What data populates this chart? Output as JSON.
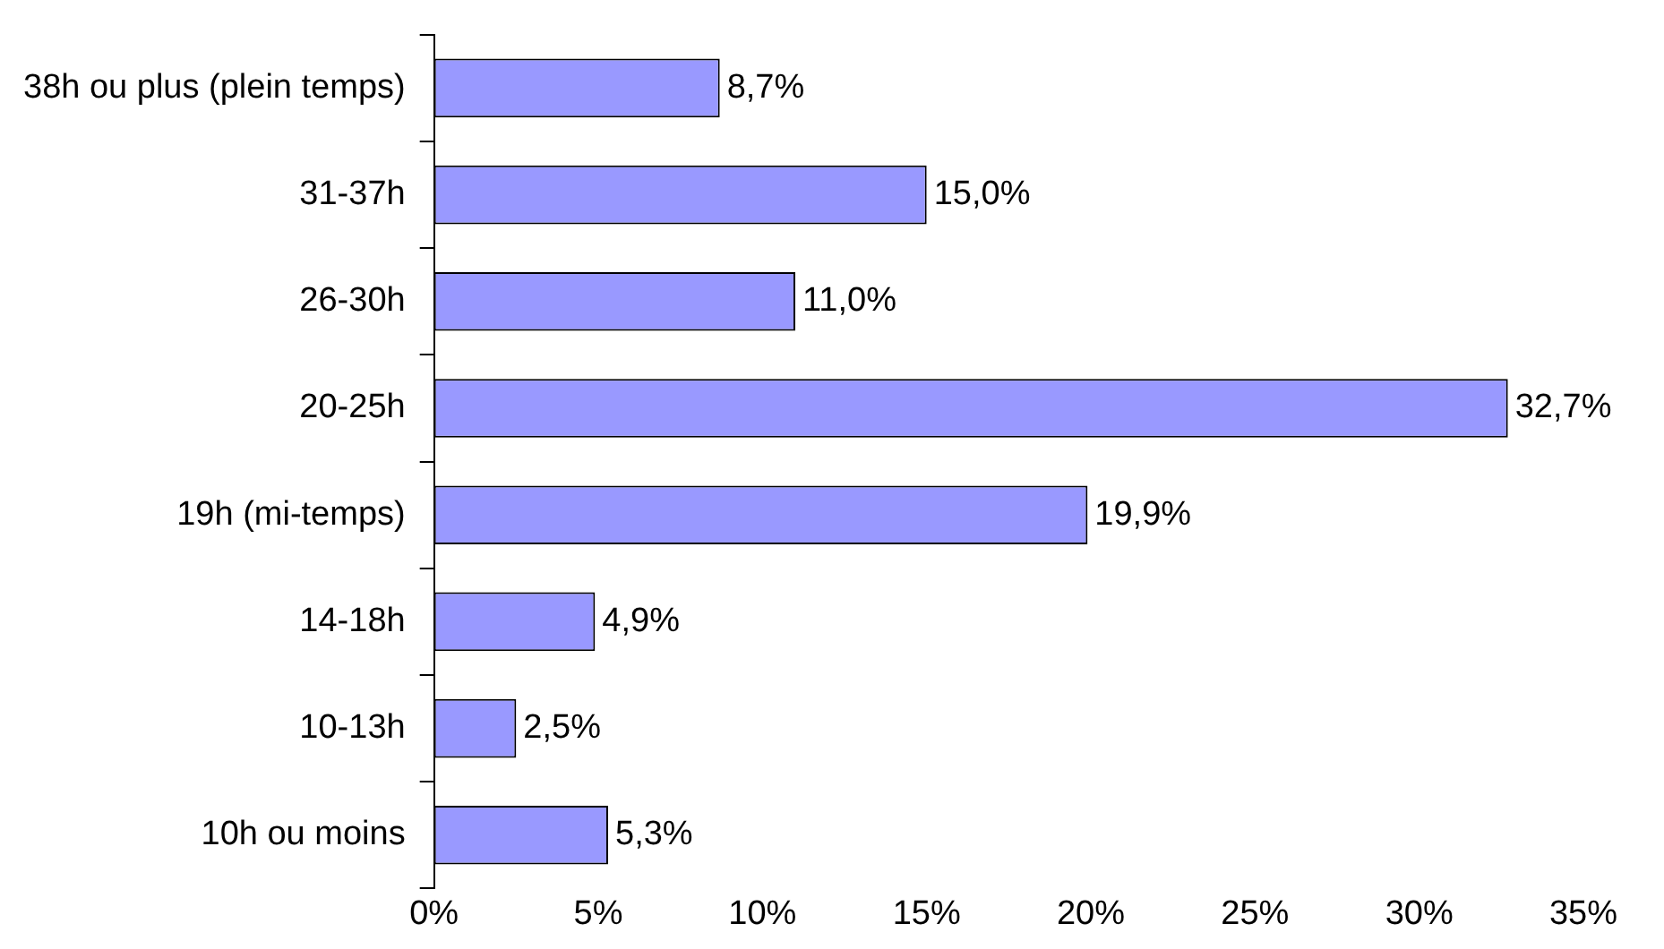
{
  "chart_data": {
    "type": "bar",
    "orientation": "horizontal",
    "categories": [
      "38h ou plus (plein temps)",
      "31-37h",
      "26-30h",
      "20-25h",
      "19h (mi-temps)",
      "14-18h",
      "10-13h",
      "10h ou moins"
    ],
    "values": [
      8.7,
      15.0,
      11.0,
      32.7,
      19.9,
      4.9,
      2.5,
      5.3
    ],
    "value_labels": [
      "8,7%",
      "15,0%",
      "11,0%",
      "32,7%",
      "19,9%",
      "4,9%",
      "2,5%",
      "5,3%"
    ],
    "color": "#9999ff",
    "xlim": [
      0,
      35
    ],
    "xticks": [
      {
        "value": 0,
        "label": "0%"
      },
      {
        "value": 5,
        "label": "5%"
      },
      {
        "value": 10,
        "label": "10%"
      },
      {
        "value": 15,
        "label": "15%"
      },
      {
        "value": 20,
        "label": "20%"
      },
      {
        "value": 25,
        "label": "25%"
      },
      {
        "value": 30,
        "label": "30%"
      },
      {
        "value": 35,
        "label": "35%"
      }
    ],
    "grid": false,
    "legend": false
  }
}
